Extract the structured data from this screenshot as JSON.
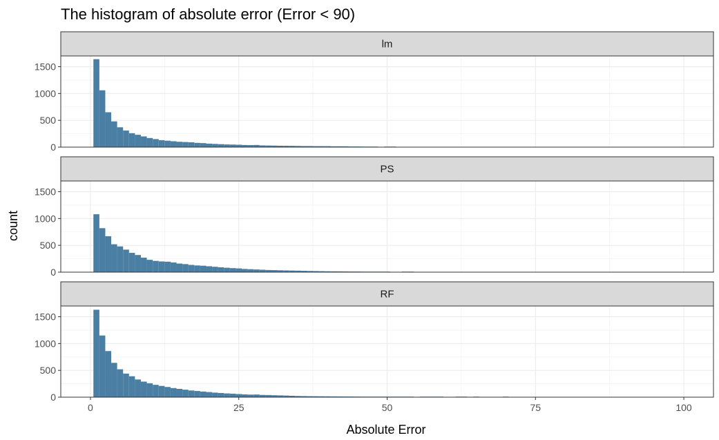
{
  "chart_data": {
    "type": "bar",
    "title": "The histogram of absolute error (Error < 90)",
    "xlabel": "Absolute Error",
    "ylabel": "count",
    "xlim": [
      -5,
      105
    ],
    "ylim": [
      0,
      1700
    ],
    "x_ticks": [
      0,
      25,
      50,
      75,
      100
    ],
    "y_ticks": [
      0,
      500,
      1000,
      1500
    ],
    "bin_width": 1,
    "bar_color": "#4a7fa3",
    "grid": true,
    "panels": [
      {
        "label": "lm",
        "bins": [
          [
            1,
            1640
          ],
          [
            2,
            1060
          ],
          [
            3,
            650
          ],
          [
            4,
            480
          ],
          [
            5,
            370
          ],
          [
            6,
            310
          ],
          [
            7,
            260
          ],
          [
            8,
            230
          ],
          [
            9,
            200
          ],
          [
            10,
            170
          ],
          [
            11,
            150
          ],
          [
            12,
            130
          ],
          [
            13,
            120
          ],
          [
            14,
            110
          ],
          [
            15,
            100
          ],
          [
            16,
            95
          ],
          [
            17,
            90
          ],
          [
            18,
            80
          ],
          [
            19,
            75
          ],
          [
            20,
            65
          ],
          [
            21,
            60
          ],
          [
            22,
            55
          ],
          [
            23,
            50
          ],
          [
            24,
            48
          ],
          [
            25,
            45
          ],
          [
            26,
            40
          ],
          [
            27,
            38
          ],
          [
            28,
            40
          ],
          [
            29,
            32
          ],
          [
            30,
            30
          ],
          [
            31,
            28
          ],
          [
            32,
            26
          ],
          [
            33,
            25
          ],
          [
            34,
            24
          ],
          [
            35,
            22
          ],
          [
            36,
            20
          ],
          [
            37,
            20
          ],
          [
            38,
            18
          ],
          [
            39,
            18
          ],
          [
            40,
            18
          ],
          [
            41,
            15
          ],
          [
            42,
            15
          ],
          [
            43,
            15
          ],
          [
            44,
            12
          ],
          [
            45,
            12
          ],
          [
            46,
            10
          ],
          [
            47,
            10
          ],
          [
            48,
            10
          ],
          [
            50,
            10
          ],
          [
            51,
            10
          ]
        ]
      },
      {
        "label": "PS",
        "bins": [
          [
            1,
            1080
          ],
          [
            2,
            820
          ],
          [
            3,
            670
          ],
          [
            4,
            520
          ],
          [
            5,
            480
          ],
          [
            6,
            420
          ],
          [
            7,
            360
          ],
          [
            8,
            320
          ],
          [
            9,
            270
          ],
          [
            10,
            230
          ],
          [
            11,
            210
          ],
          [
            12,
            200
          ],
          [
            13,
            195
          ],
          [
            14,
            180
          ],
          [
            15,
            160
          ],
          [
            16,
            150
          ],
          [
            17,
            135
          ],
          [
            18,
            125
          ],
          [
            19,
            120
          ],
          [
            20,
            110
          ],
          [
            21,
            100
          ],
          [
            22,
            90
          ],
          [
            23,
            82
          ],
          [
            24,
            75
          ],
          [
            25,
            70
          ],
          [
            26,
            60
          ],
          [
            27,
            55
          ],
          [
            28,
            50
          ],
          [
            29,
            45
          ],
          [
            30,
            40
          ],
          [
            31,
            38
          ],
          [
            32,
            35
          ],
          [
            33,
            32
          ],
          [
            34,
            30
          ],
          [
            35,
            28
          ],
          [
            36,
            25
          ],
          [
            37,
            22
          ],
          [
            38,
            20
          ],
          [
            39,
            18
          ],
          [
            40,
            16
          ],
          [
            41,
            15
          ],
          [
            42,
            14
          ],
          [
            43,
            13
          ],
          [
            44,
            12
          ],
          [
            45,
            12
          ],
          [
            46,
            10
          ],
          [
            47,
            10
          ],
          [
            48,
            10
          ],
          [
            49,
            10
          ],
          [
            50,
            10
          ],
          [
            53,
            10
          ],
          [
            54,
            10
          ]
        ]
      },
      {
        "label": "RF",
        "bins": [
          [
            1,
            1630
          ],
          [
            2,
            1150
          ],
          [
            3,
            860
          ],
          [
            4,
            640
          ],
          [
            5,
            520
          ],
          [
            6,
            440
          ],
          [
            7,
            390
          ],
          [
            8,
            330
          ],
          [
            9,
            290
          ],
          [
            10,
            260
          ],
          [
            11,
            230
          ],
          [
            12,
            210
          ],
          [
            13,
            190
          ],
          [
            14,
            170
          ],
          [
            15,
            155
          ],
          [
            16,
            140
          ],
          [
            17,
            125
          ],
          [
            18,
            115
          ],
          [
            19,
            105
          ],
          [
            20,
            95
          ],
          [
            21,
            85
          ],
          [
            22,
            78
          ],
          [
            23,
            70
          ],
          [
            24,
            65
          ],
          [
            25,
            58
          ],
          [
            26,
            52
          ],
          [
            27,
            48
          ],
          [
            28,
            50
          ],
          [
            29,
            42
          ],
          [
            30,
            40
          ],
          [
            31,
            36
          ],
          [
            32,
            33
          ],
          [
            33,
            30
          ],
          [
            34,
            26
          ],
          [
            35,
            22
          ],
          [
            36,
            20
          ],
          [
            37,
            18
          ],
          [
            38,
            17
          ],
          [
            39,
            16
          ],
          [
            40,
            15
          ],
          [
            41,
            14
          ],
          [
            42,
            13
          ],
          [
            43,
            12
          ],
          [
            44,
            12
          ],
          [
            45,
            11
          ],
          [
            46,
            10
          ],
          [
            47,
            10
          ],
          [
            48,
            10
          ],
          [
            49,
            10
          ],
          [
            50,
            10
          ],
          [
            51,
            10
          ],
          [
            52,
            10
          ],
          [
            53,
            10
          ],
          [
            54,
            10
          ],
          [
            56,
            10
          ],
          [
            57,
            10
          ],
          [
            58,
            10
          ],
          [
            59,
            10
          ],
          [
            62,
            10
          ],
          [
            63,
            10
          ],
          [
            65,
            10
          ],
          [
            70,
            10
          ]
        ]
      }
    ]
  }
}
